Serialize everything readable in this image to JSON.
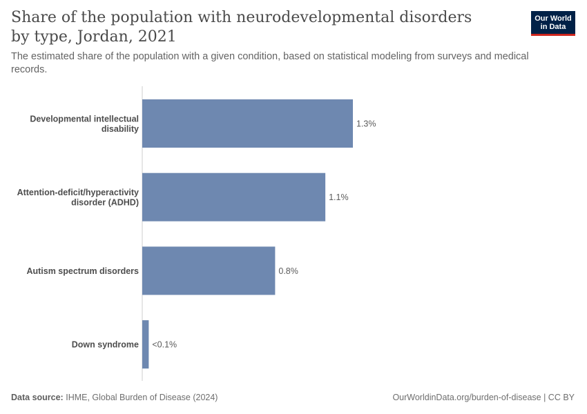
{
  "header": {
    "title": "Share of the population with neurodevelopmental disorders by type, Jordan, 2021",
    "subtitle": "The estimated share of the population with a given condition, based on statistical modeling from surveys and medical records.",
    "logo_line1": "Our World",
    "logo_line2": "in Data"
  },
  "footer": {
    "source_label": "Data source:",
    "source_text": "IHME, Global Burden of Disease (2024)",
    "credit": "OurWorldinData.org/burden-of-disease | CC BY"
  },
  "colors": {
    "bar": "#6e88b0",
    "axis": "#cccccc",
    "label": "#4d4d4d",
    "value_label": "#5b5b5b"
  },
  "chart_data": {
    "type": "bar",
    "orientation": "horizontal",
    "categories": [
      "Developmental intellectual disability",
      "Attention-deficit/hyperactivity disorder (ADHD)",
      "Autism spectrum disorders",
      "Down syndrome"
    ],
    "category_label_lines": [
      [
        "Developmental intellectual",
        "disability"
      ],
      [
        "Attention-deficit/hyperactivity",
        "disorder (ADHD)"
      ],
      [
        "Autism spectrum disorders"
      ],
      [
        "Down syndrome"
      ]
    ],
    "values": [
      1.3,
      1.13,
      0.82,
      0.04
    ],
    "value_labels": [
      "1.3%",
      "1.1%",
      "0.8%",
      "<0.1%"
    ],
    "unit": "%",
    "xlim": [
      0,
      1.3
    ]
  }
}
